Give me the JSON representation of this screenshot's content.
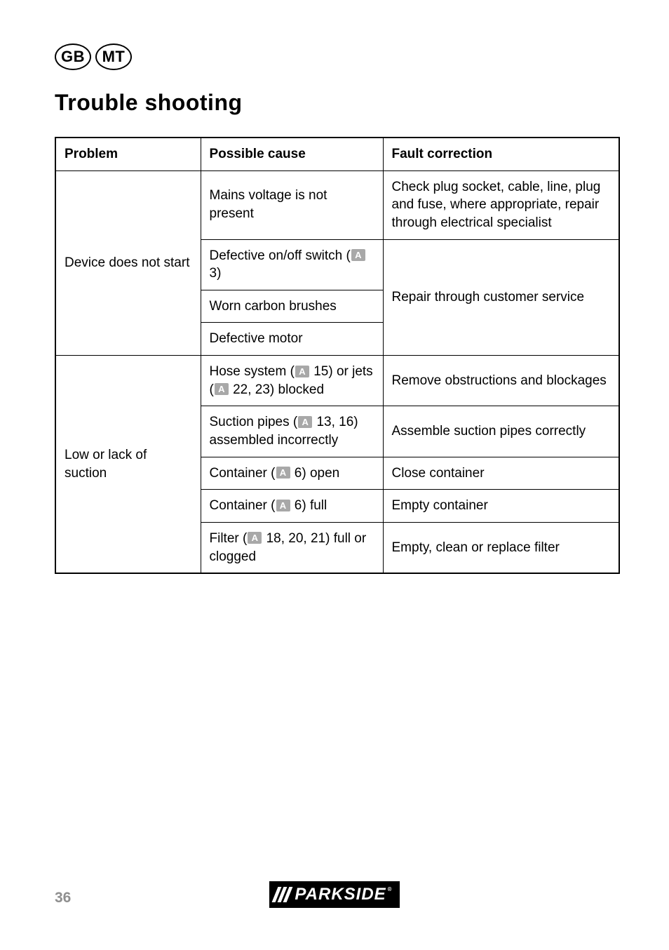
{
  "locales": [
    "GB",
    "MT"
  ],
  "heading": "Trouble shooting",
  "table": {
    "headers": [
      "Problem",
      "Possible cause",
      "Fault correction"
    ],
    "ref_icon_label": "A",
    "rows": {
      "r1": {
        "problem": "Device does not start"
      },
      "r1c1": {
        "cause": "Mains voltage is not present",
        "fix": "Check plug socket, cable, line, plug and fuse, where appropriate, repair through electrical specialist"
      },
      "r1c2": {
        "cause_pre": "Defective on/off switch (",
        "cause_ref": "3)"
      },
      "r1c2_fix": "Repair through customer service",
      "r1c3": {
        "cause": "Worn carbon brushes"
      },
      "r1c4": {
        "cause": "Defective motor"
      },
      "r2": {
        "problem": "Low or lack of suction"
      },
      "r2c1": {
        "cause_1": "Hose system (",
        "cause_2": " 15) or jets (",
        "cause_3": " 22, 23) blocked",
        "fix": "Remove obstructions and blockages"
      },
      "r2c2": {
        "cause_1": "Suction pipes (",
        "cause_2": " 13, 16) assembled incorrectly",
        "fix": "Assemble suction pipes correctly"
      },
      "r2c3": {
        "cause_1": "Container (",
        "cause_2": " 6) open",
        "fix": "Close container"
      },
      "r2c4": {
        "cause_1": "Container (",
        "cause_2": " 6) full",
        "fix": "Empty container"
      },
      "r2c5": {
        "cause_1": "Filter (",
        "cause_2": " 18, 20, 21) full or clogged",
        "fix": "Empty, clean or replace filter"
      }
    }
  },
  "footer": {
    "page": "36",
    "brand": "PARKSIDE",
    "reg": "®"
  }
}
